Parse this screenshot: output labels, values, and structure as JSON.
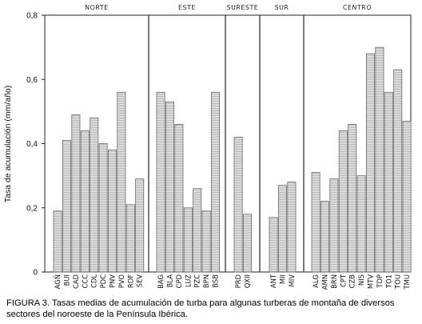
{
  "chart_data": {
    "type": "bar",
    "title": "",
    "xlabel": "",
    "ylabel": "Tasa de acumulación (mm/año)",
    "ylim": [
      0,
      0.8
    ],
    "yticks": [
      "0",
      "0,2",
      "0,4",
      "0,6",
      "0,8"
    ],
    "grid": false,
    "groups": [
      {
        "name": "NORTE",
        "categories": [
          "AGÑ",
          "BUI",
          "CAD",
          "CCC",
          "CDL",
          "PDC",
          "PNV",
          "PVO",
          "RDF",
          "SEV"
        ],
        "values": [
          0.19,
          0.41,
          0.49,
          0.44,
          0.48,
          0.4,
          0.38,
          0.56,
          0.21,
          0.29
        ]
      },
      {
        "name": "ESTE",
        "categories": [
          "BAG",
          "BLA",
          "CPD",
          "LUZ",
          "PZC",
          "BPN",
          "BSB"
        ],
        "values": [
          0.56,
          0.53,
          0.46,
          0.2,
          0.26,
          0.19,
          0.56
        ]
      },
      {
        "name": "SURESTE",
        "categories": [
          "PRD",
          "QXII"
        ],
        "values": [
          0.42,
          0.18
        ]
      },
      {
        "name": "SUR",
        "categories": [
          "ANT",
          "MII",
          "MIV"
        ],
        "values": [
          0.17,
          0.27,
          0.28
        ]
      },
      {
        "name": "CENTRO",
        "categories": [
          "ALG",
          "AMN",
          "BRN",
          "CPT",
          "CZB",
          "NIS",
          "MTV",
          "TDP",
          "TO1",
          "TOU",
          "TMU"
        ],
        "values": [
          0.31,
          0.22,
          0.29,
          0.44,
          0.46,
          0.3,
          0.68,
          0.7,
          0.56,
          0.63,
          0.47
        ]
      }
    ]
  },
  "caption": "FIGURA 3. Tasas medias de acumulación de turba para algunas turberas de montaña de diversos sectores del noroeste de la Península Ibérica.",
  "colors": {
    "bar_fill": "#d6d6d6",
    "bar_stroke": "#6a6a6a",
    "axis": "#222222",
    "background": "#ffffff"
  }
}
